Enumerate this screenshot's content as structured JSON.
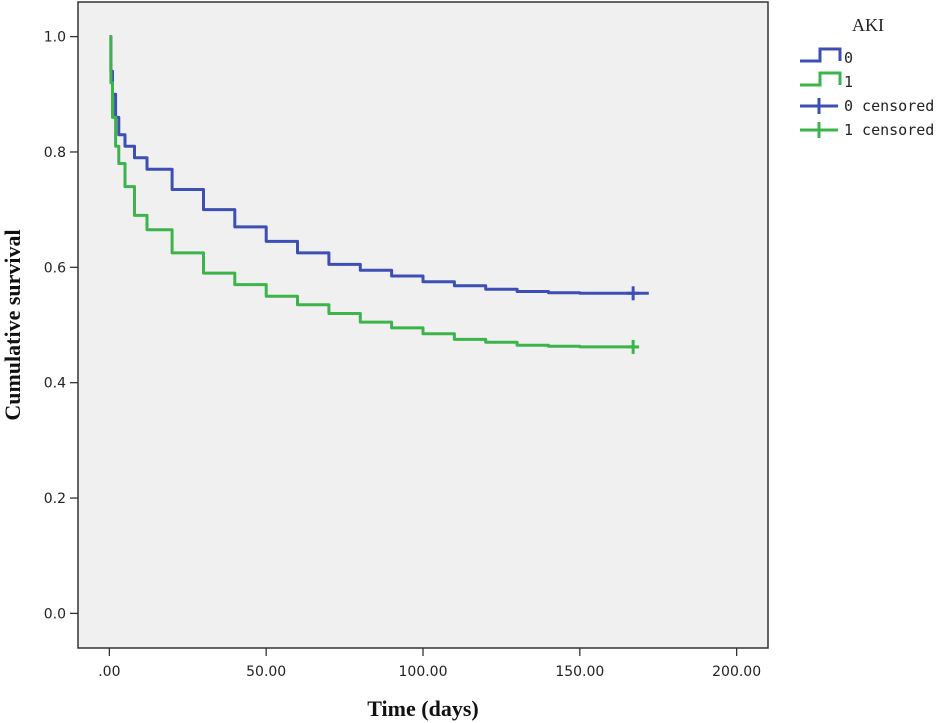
{
  "chart_data": {
    "type": "line",
    "title": "",
    "xlabel": "Time (days)",
    "ylabel": "Cumulative survival",
    "xlim": [
      -10,
      210
    ],
    "ylim": [
      -0.06,
      1.06
    ],
    "x_ticks": [
      0,
      50,
      100,
      150,
      200
    ],
    "x_tick_labels": [
      ".00",
      "50.00",
      "100.00",
      "150.00",
      "200.00"
    ],
    "y_ticks": [
      0.0,
      0.2,
      0.4,
      0.6,
      0.8,
      1.0
    ],
    "y_tick_labels": [
      "0.0",
      "0.2",
      "0.4",
      "0.6",
      "0.8",
      "1.0"
    ],
    "grid": false,
    "legend_title": "AKI",
    "legend_position": "top-right, outside plot",
    "plot_background": "#f0f0f0",
    "series": [
      {
        "name": "0",
        "color": "#3d4fb5",
        "x": [
          0,
          0.5,
          1,
          2,
          3,
          5,
          8,
          12,
          20,
          30,
          40,
          50,
          60,
          70,
          80,
          90,
          100,
          110,
          120,
          130,
          140,
          150,
          160,
          167,
          172
        ],
        "y": [
          1.0,
          0.94,
          0.9,
          0.86,
          0.83,
          0.81,
          0.79,
          0.77,
          0.735,
          0.7,
          0.67,
          0.645,
          0.625,
          0.605,
          0.595,
          0.585,
          0.575,
          0.568,
          0.562,
          0.558,
          0.556,
          0.555,
          0.555,
          0.555,
          0.555
        ]
      },
      {
        "name": "1",
        "color": "#3cb44b",
        "x": [
          0,
          0.5,
          1,
          2,
          3,
          5,
          8,
          12,
          20,
          30,
          40,
          50,
          60,
          70,
          80,
          90,
          100,
          110,
          120,
          130,
          140,
          150,
          160,
          167
        ],
        "y": [
          1.0,
          0.92,
          0.86,
          0.81,
          0.78,
          0.74,
          0.69,
          0.665,
          0.625,
          0.59,
          0.57,
          0.55,
          0.535,
          0.52,
          0.505,
          0.495,
          0.485,
          0.475,
          0.47,
          0.465,
          0.463,
          0.462,
          0.462,
          0.462
        ]
      }
    ],
    "censored_markers": [
      {
        "name": "0 censored",
        "color": "#3d4fb5",
        "x": 167,
        "y": 0.555
      },
      {
        "name": "1 censored",
        "color": "#3cb44b",
        "x": 167,
        "y": 0.462
      }
    ]
  }
}
